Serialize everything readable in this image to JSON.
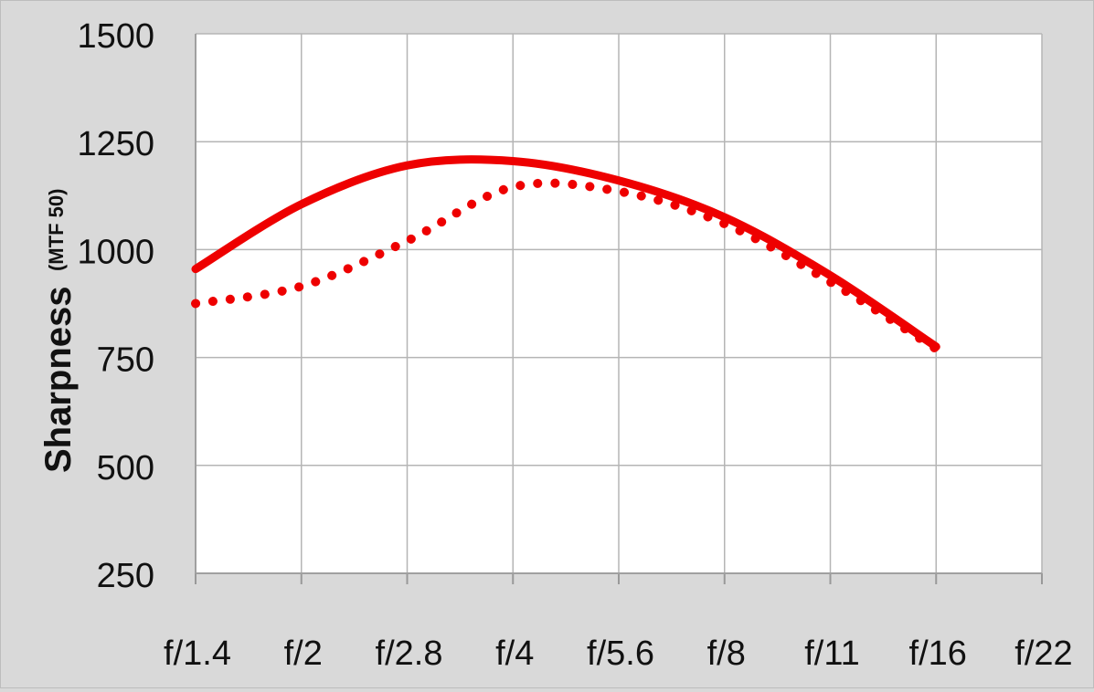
{
  "chart_data": {
    "type": "line",
    "title": "",
    "ylabel": "Sharpness",
    "ylabel_unit": "(MTF 50)",
    "xlabel": "",
    "categories": [
      "f/1.4",
      "f/2",
      "f/2.8",
      "f/4",
      "f/5.6",
      "f/8",
      "f/11",
      "f/16",
      "f/22"
    ],
    "yticks": [
      250,
      500,
      750,
      1000,
      1250,
      1500
    ],
    "ylim": [
      250,
      1500
    ],
    "grid": true,
    "legend": "none",
    "series": [
      {
        "style": "solid",
        "color": "#ee0000",
        "values": [
          955,
          1105,
          1195,
          1205,
          1160,
          1075,
          940,
          775,
          null
        ]
      },
      {
        "style": "dotted",
        "color": "#ee0000",
        "values": [
          875,
          915,
          1020,
          1145,
          1135,
          1060,
          925,
          770,
          null
        ]
      }
    ]
  }
}
